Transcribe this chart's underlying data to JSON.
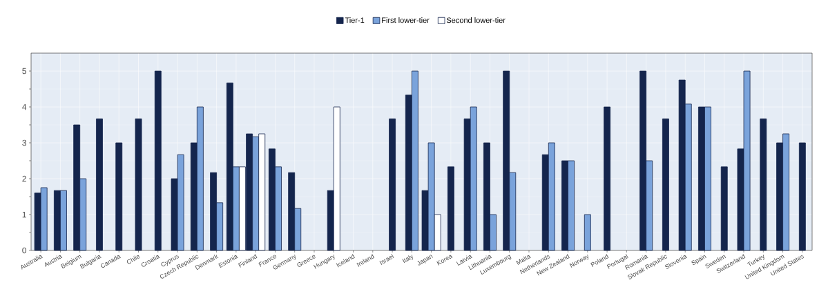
{
  "chart_data": {
    "type": "bar",
    "categories": [
      "Australia",
      "Austria",
      "Belgium",
      "Bulgaria",
      "Canada",
      "Chile",
      "Croatia",
      "Cyprus",
      "Czech Republic",
      "Denmark",
      "Estonia",
      "Finland",
      "France",
      "Germany",
      "Greece",
      "Hungary",
      "Iceland",
      "Ireland",
      "Israel",
      "Italy",
      "Japan",
      "Korea",
      "Latvia",
      "Lithuania",
      "Luxembourg",
      "Malta",
      "Netherlands",
      "New Zealand",
      "Norway",
      "Poland",
      "Portugal",
      "Romania",
      "Slovak Republic",
      "Slovenia",
      "Spain",
      "Sweden",
      "Switzerland",
      "Turkey",
      "United Kingdom",
      "United States"
    ],
    "series": [
      {
        "name": "Tier-1",
        "color": "#14254d",
        "values": [
          1.6,
          1.67,
          3.5,
          3.67,
          3.0,
          3.67,
          5.0,
          2.0,
          3.0,
          2.17,
          4.67,
          3.25,
          2.83,
          2.17,
          null,
          1.67,
          null,
          null,
          3.67,
          4.33,
          1.67,
          2.33,
          3.67,
          3.0,
          5.0,
          null,
          2.67,
          2.5,
          null,
          4.0,
          null,
          5.0,
          3.67,
          4.75,
          4.0,
          2.33,
          2.83,
          3.67,
          3.0,
          3.0
        ]
      },
      {
        "name": "First lower-tier",
        "color": "#7aa3db",
        "values": [
          1.75,
          1.67,
          2.0,
          null,
          null,
          null,
          null,
          2.67,
          4.0,
          1.33,
          2.33,
          3.17,
          2.33,
          1.17,
          null,
          null,
          null,
          null,
          null,
          5.0,
          3.0,
          null,
          4.0,
          1.0,
          2.17,
          null,
          3.0,
          2.5,
          1.0,
          null,
          null,
          2.5,
          null,
          4.08,
          4.0,
          null,
          5.0,
          null,
          3.25,
          null
        ]
      },
      {
        "name": "Second lower-tier",
        "color": "#ffffff",
        "values": [
          null,
          null,
          null,
          null,
          null,
          null,
          null,
          null,
          null,
          null,
          2.33,
          3.25,
          null,
          null,
          null,
          4.0,
          null,
          null,
          null,
          null,
          1.0,
          null,
          null,
          null,
          null,
          null,
          null,
          null,
          null,
          null,
          null,
          null,
          null,
          null,
          null,
          null,
          null,
          null,
          null,
          null
        ]
      }
    ],
    "ylim": [
      0,
      5.5
    ],
    "yticks": [
      0,
      1,
      2,
      3,
      4,
      5
    ],
    "grid": true,
    "legend": "top"
  }
}
